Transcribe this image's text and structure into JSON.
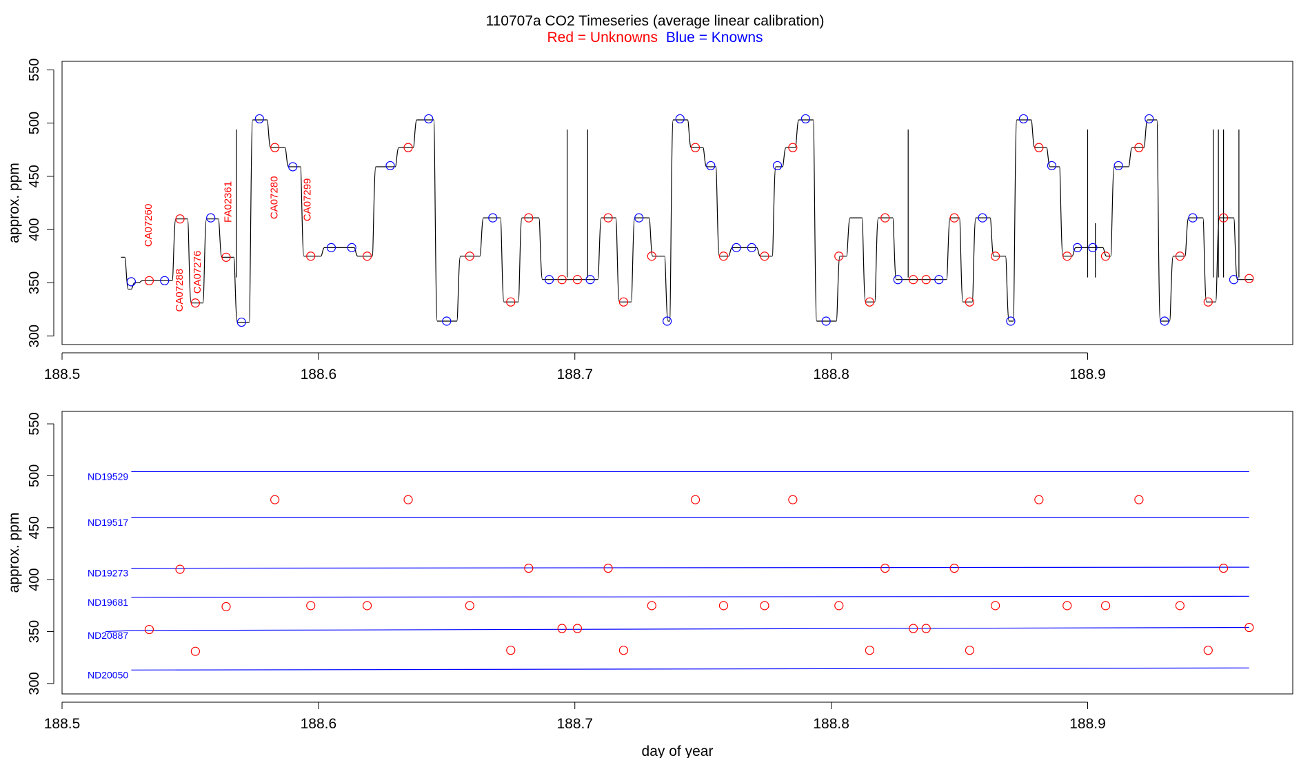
{
  "title": {
    "main": "110707a   CO2 Timeseries (average linear calibration)",
    "sub_red": "Red = Unknowns",
    "sub_blue": "Blue = Knowns"
  },
  "colors": {
    "unknown": "#ff0000",
    "known": "#0000ff",
    "trace": "#000000",
    "refline": "#0000ff"
  },
  "chart_data": [
    {
      "type": "line",
      "panel": "top",
      "xlabel": "",
      "ylabel": "approx. ppm",
      "xlim": [
        188.5,
        188.98
      ],
      "ylim": [
        292,
        558
      ],
      "xticks": [
        "188.5",
        "188.6",
        "188.7",
        "188.8",
        "188.9"
      ],
      "xtick_values": [
        188.5,
        188.6,
        188.7,
        188.8,
        188.9
      ],
      "yticks": [
        "300",
        "350",
        "400",
        "450",
        "500",
        "550"
      ],
      "ytick_values": [
        300,
        350,
        400,
        450,
        500,
        550
      ],
      "trace": {
        "start": [
          188.523,
          374
        ],
        "steps": [
          [
            188.5245,
            344
          ],
          [
            188.527,
            350
          ],
          [
            188.53,
            352
          ],
          [
            188.543,
            410
          ],
          [
            188.549,
            331
          ],
          [
            188.555,
            410
          ],
          [
            188.561,
            374
          ],
          [
            188.567,
            313
          ],
          [
            188.573,
            503
          ],
          [
            188.58,
            477
          ],
          [
            188.587,
            459
          ],
          [
            188.593,
            375
          ],
          [
            188.601,
            383
          ],
          [
            188.614,
            375
          ],
          [
            188.621,
            459
          ],
          [
            188.63,
            477
          ],
          [
            188.637,
            503
          ],
          [
            188.645,
            314
          ],
          [
            188.654,
            375
          ],
          [
            188.663,
            411
          ],
          [
            188.671,
            332
          ],
          [
            188.678,
            411
          ],
          [
            188.686,
            353
          ],
          [
            188.695,
            353
          ],
          [
            188.706,
            353
          ],
          [
            188.709,
            411
          ],
          [
            188.716,
            332
          ],
          [
            188.722,
            411
          ],
          [
            188.729,
            375
          ],
          [
            188.735,
            314
          ],
          [
            188.737,
            503
          ],
          [
            188.744,
            477
          ],
          [
            188.75,
            459
          ],
          [
            188.755,
            375
          ],
          [
            188.76,
            383
          ],
          [
            188.771,
            375
          ],
          [
            188.777,
            459
          ],
          [
            188.781,
            477
          ],
          [
            188.786,
            503
          ],
          [
            188.793,
            314
          ],
          [
            188.802,
            375
          ],
          [
            188.806,
            411
          ],
          [
            188.812,
            332
          ],
          [
            188.817,
            411
          ],
          [
            188.824,
            353
          ],
          [
            188.845,
            411
          ],
          [
            188.85,
            332
          ],
          [
            188.855,
            411
          ],
          [
            188.862,
            375
          ],
          [
            188.868,
            314
          ],
          [
            188.871,
            503
          ],
          [
            188.878,
            477
          ],
          [
            188.884,
            459
          ],
          [
            188.889,
            375
          ],
          [
            188.894,
            383
          ],
          [
            188.906,
            375
          ],
          [
            188.909,
            459
          ],
          [
            188.916,
            477
          ],
          [
            188.922,
            503
          ],
          [
            188.927,
            314
          ],
          [
            188.932,
            375
          ],
          [
            188.938,
            411
          ],
          [
            188.945,
            332
          ],
          [
            188.95,
            411
          ],
          [
            188.957,
            353
          ],
          [
            188.963,
            353
          ]
        ],
        "spikes": [
          [
            188.568,
            494
          ],
          [
            188.697,
            494
          ],
          [
            188.705,
            494
          ],
          [
            188.83,
            494
          ],
          [
            188.9,
            494
          ],
          [
            188.903,
            406
          ],
          [
            188.949,
            494
          ],
          [
            188.951,
            494
          ],
          [
            188.953,
            494
          ],
          [
            188.959,
            494
          ]
        ]
      },
      "knowns_x": [
        188.527,
        188.54,
        188.558,
        188.57,
        188.577,
        188.59,
        188.605,
        188.613,
        188.628,
        188.643,
        188.65,
        188.668,
        188.69,
        188.706,
        188.725,
        188.736,
        188.741,
        188.753,
        188.763,
        188.769,
        188.779,
        188.79,
        188.798,
        188.826,
        188.842,
        188.859,
        188.87,
        188.875,
        188.886,
        188.896,
        188.902,
        188.912,
        188.924,
        188.93,
        188.941,
        188.957
      ],
      "knowns_y": [
        351,
        352,
        411,
        313,
        504,
        459,
        383,
        383,
        460,
        504,
        314,
        411,
        353,
        353,
        411,
        314,
        504,
        460,
        383,
        383,
        460,
        504,
        314,
        353,
        353,
        411,
        314,
        504,
        460,
        383,
        383,
        460,
        504,
        314,
        411,
        353
      ],
      "unknowns_x": [
        188.534,
        188.546,
        188.552,
        188.564,
        188.583,
        188.597,
        188.619,
        188.635,
        188.659,
        188.675,
        188.682,
        188.695,
        188.701,
        188.713,
        188.719,
        188.73,
        188.747,
        188.758,
        188.774,
        188.785,
        188.803,
        188.815,
        188.821,
        188.832,
        188.837,
        188.848,
        188.854,
        188.864,
        188.881,
        188.892,
        188.907,
        188.92,
        188.936,
        188.947,
        188.953,
        188.963
      ],
      "unknowns_y": [
        352,
        410,
        331,
        374,
        477,
        375,
        375,
        477,
        375,
        332,
        411,
        353,
        353,
        411,
        332,
        375,
        477,
        375,
        375,
        477,
        375,
        332,
        411,
        353,
        353,
        411,
        332,
        375,
        477,
        375,
        375,
        477,
        375,
        332,
        411,
        354
      ],
      "annotations": [
        {
          "text": "CA07260",
          "x": 188.535,
          "y": 404
        },
        {
          "text": "CA07288",
          "x": 188.547,
          "y": 343
        },
        {
          "text": "CA07276",
          "x": 188.554,
          "y": 360
        },
        {
          "text": "FA02361",
          "x": 188.566,
          "y": 426
        },
        {
          "text": "CA07280",
          "x": 188.584,
          "y": 430
        },
        {
          "text": "CA07299",
          "x": 188.597,
          "y": 428
        }
      ]
    },
    {
      "type": "scatter",
      "panel": "bottom",
      "xlabel": "day of year",
      "ylabel": "approx. ppm",
      "xlim": [
        188.5,
        188.98
      ],
      "ylim": [
        290,
        562
      ],
      "xticks": [
        "188.5",
        "188.6",
        "188.7",
        "188.8",
        "188.9"
      ],
      "xtick_values": [
        188.5,
        188.6,
        188.7,
        188.8,
        188.9
      ],
      "yticks": [
        "300",
        "350",
        "400",
        "450",
        "500",
        "550"
      ],
      "ytick_values": [
        300,
        350,
        400,
        450,
        500,
        550
      ],
      "reference_lines": [
        {
          "name": "ND19529",
          "y_start": 504,
          "y_end": 504
        },
        {
          "name": "ND19517",
          "y_start": 460,
          "y_end": 460
        },
        {
          "name": "ND19273",
          "y_start": 411,
          "y_end": 412
        },
        {
          "name": "ND19681",
          "y_start": 383,
          "y_end": 384
        },
        {
          "name": "ND20887",
          "y_start": 351,
          "y_end": 354
        },
        {
          "name": "ND20050",
          "y_start": 313,
          "y_end": 315
        }
      ],
      "reference_line_x": [
        188.527,
        188.963
      ],
      "unknowns_x": [
        188.534,
        188.546,
        188.552,
        188.564,
        188.583,
        188.597,
        188.619,
        188.635,
        188.659,
        188.675,
        188.682,
        188.695,
        188.701,
        188.713,
        188.719,
        188.73,
        188.747,
        188.758,
        188.774,
        188.785,
        188.803,
        188.815,
        188.821,
        188.832,
        188.837,
        188.848,
        188.854,
        188.864,
        188.881,
        188.892,
        188.907,
        188.92,
        188.936,
        188.947,
        188.953,
        188.963
      ],
      "unknowns_y": [
        352,
        410,
        331,
        374,
        477,
        375,
        375,
        477,
        375,
        332,
        411,
        353,
        353,
        411,
        332,
        375,
        477,
        375,
        375,
        477,
        375,
        332,
        411,
        353,
        353,
        411,
        332,
        375,
        477,
        375,
        375,
        477,
        375,
        332,
        411,
        354
      ]
    }
  ]
}
